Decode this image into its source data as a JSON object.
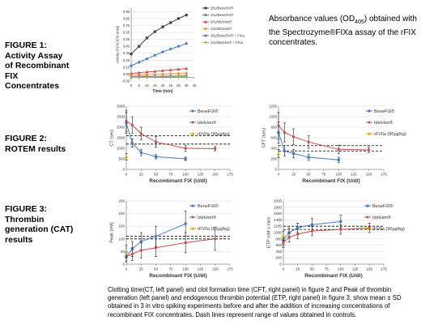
{
  "figures": [
    {
      "lines": [
        "FIGURE 1:",
        "Activity Assay",
        "of Recombinant",
        "FIX",
        "Concentrates"
      ]
    },
    {
      "lines": [
        "FIGURE 2:",
        "ROTEM results"
      ]
    },
    {
      "lines": [
        "FIGURE 3:",
        "Thrombin",
        "generation (CAT)",
        "results"
      ]
    }
  ],
  "abs_note": {
    "prefix": "Absorbance values (OD",
    "sub": "405",
    "rest": ") obtained with the Spectrozyme®FIXa assay of the rFIX concentrates."
  },
  "caption": "Clotting time(CT, left panel) and clot formation time (CFT, right panel) in figure 2 and Peak of thrombin generation (left panel) and endogenous thrombin potential (ETP, right panel) in figure 3, show mean ± SD obtained in 3 in vitro spiking experiments before and after the addition of increasing concentrations of recombinant FIX concentrates. Dash lines represent range of values obtained in controls.",
  "chart_data": [
    {
      "id": "fig1",
      "type": "line",
      "title": "",
      "xlabel": "Time (min)",
      "ylabel": "Activity of FIX (OD units)",
      "xlim": [
        0,
        40
      ],
      "ylim": [
        -0.05,
        1.0
      ],
      "x_ticks": [
        0,
        5,
        10,
        15,
        20,
        25,
        30,
        35,
        40
      ],
      "y_ticks": [
        -0.05,
        0.05,
        0.15,
        0.25,
        0.35,
        0.45,
        0.55,
        0.65,
        0.75,
        0.85,
        0.95
      ],
      "legend_position": "top-right",
      "series": [
        {
          "name": "20U/BeneFIX®",
          "color": "#404040",
          "x": [
            0,
            5,
            10,
            15,
            20,
            25,
            30,
            35
          ],
          "y": [
            0.34,
            0.45,
            0.57,
            0.66,
            0.73,
            0.79,
            0.85,
            0.9
          ]
        },
        {
          "name": "10U/BeneFIX®",
          "color": "#4a7ebb",
          "x": [
            0,
            5,
            10,
            15,
            20,
            25,
            30,
            35
          ],
          "y": [
            0.17,
            0.22,
            0.27,
            0.32,
            0.37,
            0.41,
            0.45,
            0.49
          ]
        },
        {
          "name": "20U/Idelvion®",
          "color": "#c0504d",
          "x": [
            0,
            5,
            10,
            15,
            20,
            25,
            30,
            35
          ],
          "y": [
            0.06,
            0.07,
            0.08,
            0.09,
            0.1,
            0.11,
            0.12,
            0.13
          ]
        },
        {
          "name": "10U/Idelvion®",
          "color": "#f79646",
          "x": [
            0,
            5,
            10,
            15,
            20,
            25,
            30,
            35
          ],
          "y": [
            0.03,
            0.035,
            0.04,
            0.045,
            0.05,
            0.055,
            0.06,
            0.065
          ]
        },
        {
          "name": "10U/BeneFIX® + FXIa",
          "color": "#8064a2",
          "x": [
            0,
            5,
            10,
            15,
            20,
            25,
            30,
            35
          ],
          "y": [
            0.01,
            0.012,
            0.014,
            0.016,
            0.018,
            0.02,
            0.022,
            0.024
          ]
        },
        {
          "name": "10U/Idelvion® + FXIa",
          "color": "#9bbb59",
          "x": [
            0,
            5,
            10,
            15,
            20,
            25,
            30,
            35
          ],
          "y": [
            0.0,
            0.002,
            0.004,
            0.006,
            0.008,
            0.01,
            0.012,
            0.014
          ]
        }
      ]
    },
    {
      "id": "fig2_ct",
      "type": "line",
      "title": "",
      "xlabel": "Recombinant FIX (U/dl)",
      "ylabel": "CT (sec)",
      "xlim": [
        0,
        175
      ],
      "ylim": [
        0,
        3000
      ],
      "x_ticks": [
        0,
        25,
        50,
        75,
        100,
        125,
        150,
        175
      ],
      "y_ticks": [
        0,
        500,
        1000,
        1500,
        2000,
        2500,
        3000
      ],
      "legend_position": "top-right",
      "control_range": [
        1200,
        1600
      ],
      "series": [
        {
          "name": "BeneFIX®",
          "color": "#4a7ebb",
          "x": [
            0,
            10,
            25,
            50,
            100
          ],
          "y": [
            2200,
            1250,
            800,
            600,
            500
          ],
          "err": [
            500,
            200,
            150,
            100,
            80
          ]
        },
        {
          "name": "Idelvion®",
          "color": "#c0504d",
          "x": [
            0,
            10,
            25,
            50,
            100,
            150
          ],
          "y": [
            2300,
            2100,
            1700,
            1300,
            1000,
            980
          ],
          "err": [
            500,
            400,
            300,
            250,
            150,
            100
          ]
        },
        {
          "name": "rFVIIa (90µg/kg)",
          "color": "#d4aa00",
          "x": [
            0
          ],
          "y": [
            600
          ],
          "err": [
            150
          ]
        }
      ]
    },
    {
      "id": "fig2_cft",
      "type": "line",
      "title": "",
      "xlabel": "Recombinant FIX (U/dl)",
      "ylabel": "CFT (sec)",
      "xlim": [
        0,
        175
      ],
      "ylim": [
        0,
        1200
      ],
      "x_ticks": [
        0,
        25,
        50,
        75,
        100,
        125,
        150,
        175
      ],
      "y_ticks": [
        0,
        200,
        400,
        600,
        800,
        1000,
        1200
      ],
      "legend_position": "top-right",
      "control_range": [
        350,
        450
      ],
      "series": [
        {
          "name": "BeneFIX®",
          "color": "#4a7ebb",
          "x": [
            0,
            10,
            25,
            50,
            100
          ],
          "y": [
            700,
            350,
            300,
            230,
            180
          ],
          "err": [
            200,
            100,
            80,
            60,
            50
          ]
        },
        {
          "name": "Idelvion®",
          "color": "#c0504d",
          "x": [
            0,
            10,
            25,
            50,
            100,
            150
          ],
          "y": [
            830,
            700,
            620,
            520,
            380,
            370
          ],
          "err": [
            250,
            180,
            150,
            120,
            80,
            50
          ]
        },
        {
          "name": "rFVIIa (90µg/kg)",
          "color": "#d4aa00",
          "x": [
            0
          ],
          "y": [
            300
          ],
          "err": [
            80
          ]
        }
      ]
    },
    {
      "id": "fig3_peak",
      "type": "line",
      "title": "",
      "xlabel": "Recombinant FIX (U/dl)",
      "ylabel": "Peak (nM)",
      "xlim": [
        0,
        175
      ],
      "ylim": [
        0,
        250
      ],
      "x_ticks": [
        0,
        25,
        50,
        75,
        100,
        125,
        150,
        175
      ],
      "y_ticks": [
        0,
        50,
        100,
        150,
        200,
        250
      ],
      "legend_position": "top-right",
      "control_range": [
        100,
        110
      ],
      "series": [
        {
          "name": "BeneFIX®",
          "color": "#4a7ebb",
          "x": [
            0,
            10,
            25,
            50,
            100
          ],
          "y": [
            30,
            60,
            90,
            110,
            160
          ],
          "err": [
            20,
            30,
            35,
            40,
            50
          ]
        },
        {
          "name": "Idelvion®",
          "color": "#c0504d",
          "x": [
            0,
            10,
            25,
            50,
            100,
            150
          ],
          "y": [
            30,
            40,
            55,
            65,
            85,
            100
          ],
          "err": [
            20,
            25,
            30,
            35,
            40,
            45
          ]
        },
        {
          "name": "rFVIIa (90µg/kg)",
          "color": "#d4aa00",
          "x": [
            0
          ],
          "y": [
            50
          ],
          "err": [
            25
          ]
        }
      ]
    },
    {
      "id": "fig3_etp",
      "type": "line",
      "title": "",
      "xlabel": "Recombinant FIX (U/dl)",
      "ylabel": "ETP (nM x min)",
      "xlim": [
        0,
        175
      ],
      "ylim": [
        0,
        2000
      ],
      "x_ticks": [
        0,
        25,
        50,
        75,
        100,
        125,
        150,
        175
      ],
      "y_ticks": [
        0,
        200,
        400,
        600,
        800,
        1000,
        1200,
        1400,
        1600,
        1800,
        2000
      ],
      "legend_position": "top-right",
      "control_range": [
        1100,
        1200
      ],
      "series": [
        {
          "name": "BeneFIX®",
          "color": "#4a7ebb",
          "x": [
            0,
            10,
            25,
            50,
            100
          ],
          "y": [
            750,
            1000,
            1150,
            1250,
            1350
          ],
          "err": [
            150,
            150,
            150,
            200,
            200
          ]
        },
        {
          "name": "Idelvion®",
          "color": "#c0504d",
          "x": [
            0,
            10,
            25,
            50,
            100,
            150
          ],
          "y": [
            680,
            850,
            950,
            1050,
            1100,
            1150
          ],
          "err": [
            150,
            150,
            150,
            150,
            150,
            150
          ]
        },
        {
          "name": "rFVIIa (90µg/kg)",
          "color": "#d4aa00",
          "x": [
            0
          ],
          "y": [
            900
          ],
          "err": [
            150
          ]
        }
      ]
    }
  ]
}
